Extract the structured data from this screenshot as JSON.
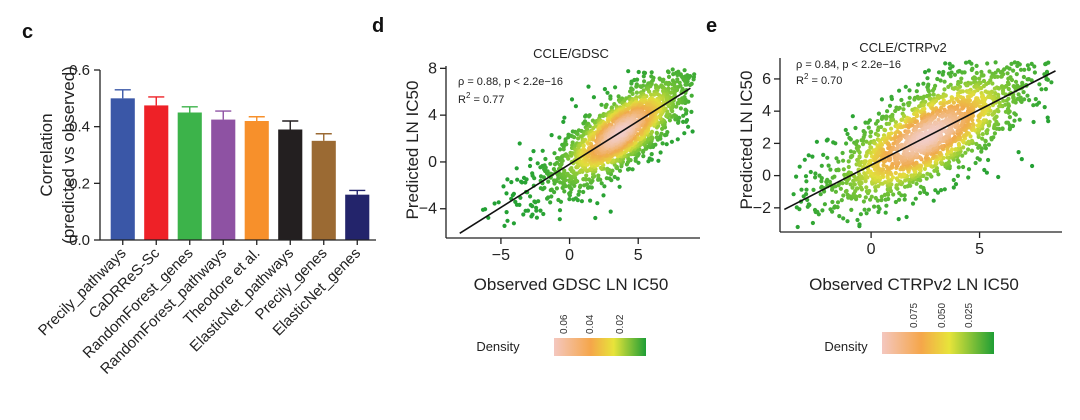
{
  "chart_data": [
    {
      "panel": "c",
      "type": "bar",
      "title": "",
      "ylabel_line1": "Correlation",
      "ylabel_line2": "(predicted vs observed)",
      "xlabel": "",
      "ylim": [
        0,
        0.6
      ],
      "yticks": [
        0.0,
        0.2,
        0.4,
        0.6
      ],
      "ytick_labels": [
        "0.0",
        "0.2",
        "0.4",
        "0.6"
      ],
      "categories": [
        "Precily_pathways",
        "CaDRReS-Sc",
        "RandomForest_genes",
        "RandomForest_pathways",
        "Theodore et al.",
        "ElasticNet_pathways",
        "Precily_genes",
        "ElasticNet_genes"
      ],
      "values": [
        0.5,
        0.475,
        0.45,
        0.425,
        0.42,
        0.39,
        0.35,
        0.16
      ],
      "errors": [
        0.03,
        0.03,
        0.02,
        0.03,
        0.015,
        0.03,
        0.025,
        0.015
      ],
      "colors": [
        "#3a57a7",
        "#ee2127",
        "#3cb34a",
        "#8e52a3",
        "#f7902b",
        "#231f20",
        "#9b6a33",
        "#23246b"
      ]
    },
    {
      "panel": "d",
      "type": "scatter",
      "title": "CCLE/GDSC",
      "xlabel": "Observed GDSC LN IC50",
      "ylabel": "Predicted LN IC50",
      "xlim": [
        -9,
        9.5
      ],
      "ylim": [
        -6.5,
        8.2
      ],
      "xticks": [
        -5,
        0,
        5
      ],
      "xtick_labels": [
        "−5",
        "0",
        "5"
      ],
      "yticks": [
        -4,
        0,
        4,
        8
      ],
      "ytick_labels": [
        "−4",
        "0",
        "4",
        "8"
      ],
      "stat_line1": "ρ = 0.88, p < 2.2e−16",
      "stat_r2_prefix": "R",
      "stat_r2_sup": "2",
      "stat_r2_value": " = 0.77",
      "fit_line": {
        "x": [
          -8,
          8.8
        ],
        "y": [
          -6.1,
          6.3
        ]
      },
      "density_center": [
        3.7,
        3.5
      ],
      "legend_title": "Density",
      "legend_ticks": [
        "0.06",
        "0.04",
        "0.02"
      ]
    },
    {
      "panel": "e",
      "type": "scatter",
      "title": "CCLE/CTRPv2",
      "xlabel": "Observed CTRPv2 LN IC50",
      "ylabel": "Predicted LN IC50",
      "xlim": [
        -4.2,
        8.8
      ],
      "ylim": [
        -3.5,
        7.3
      ],
      "xticks": [
        0,
        5
      ],
      "xtick_labels": [
        "0",
        "5"
      ],
      "yticks": [
        -2,
        0,
        2,
        4,
        6
      ],
      "ytick_labels": [
        "−2",
        "0",
        "2",
        "4",
        "6"
      ],
      "stat_line1": "ρ = 0.84, p < 2.2e−16",
      "stat_r2_prefix": "R",
      "stat_r2_sup": "2",
      "stat_r2_value": " = 0.70",
      "fit_line": {
        "x": [
          -4,
          8.5
        ],
        "y": [
          -2.1,
          6.5
        ]
      },
      "density_center": [
        2.6,
        2.6
      ],
      "legend_title": "Density",
      "legend_ticks": [
        "0.075",
        "0.050",
        "0.025"
      ]
    }
  ],
  "colors": {
    "density_low": "#2ca02c",
    "density_mid": "#f0e04a",
    "density_high": "#f4c7bf"
  }
}
